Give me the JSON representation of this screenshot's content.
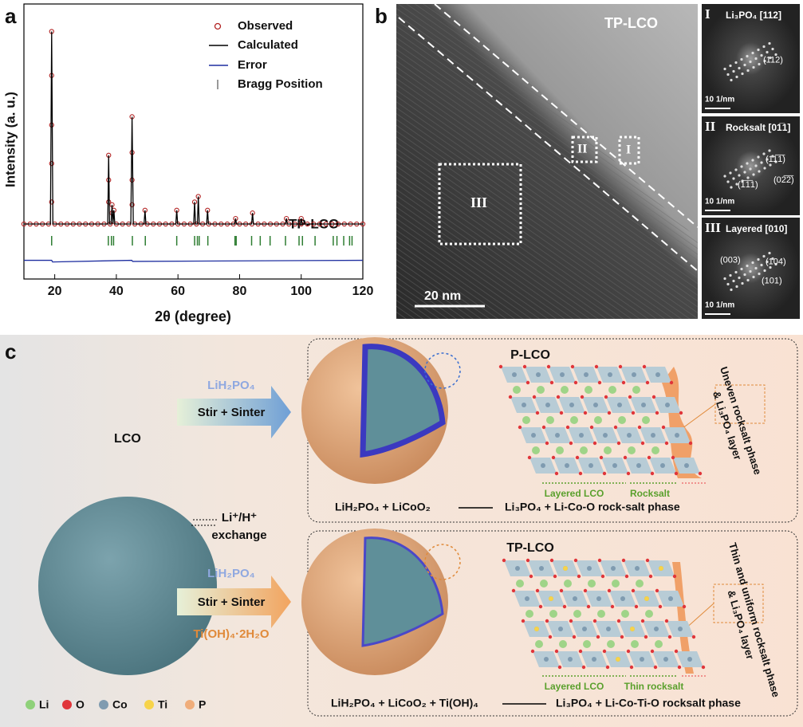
{
  "chart_data": {
    "type": "line",
    "panel_label": "a",
    "x_label": "2θ (degree)",
    "y_label": "Intensity (a. u.)",
    "annotation": "TP-LCO",
    "xlim": [
      10,
      120
    ],
    "ylim": [
      0,
      100
    ],
    "xticks": [
      20,
      40,
      60,
      80,
      100,
      120
    ],
    "series": [
      {
        "name": "Observed",
        "color": "#b22222",
        "marker": "circle",
        "x": [
          10,
          12,
          14,
          16,
          18,
          20,
          22,
          24,
          26,
          28,
          30,
          32,
          34,
          36,
          38,
          40,
          42,
          44,
          46,
          48,
          50,
          52,
          54,
          56,
          58,
          60,
          62,
          64,
          66,
          68,
          70,
          72,
          74,
          76,
          78,
          80,
          82,
          84,
          86,
          88,
          90,
          92,
          94,
          96,
          98,
          100,
          102,
          104,
          106,
          108,
          110,
          112,
          114,
          116,
          118,
          120,
          19,
          19,
          19,
          19,
          19,
          37.5,
          37.5,
          37.5,
          38.6,
          38.6,
          39.2,
          45.1,
          45.1,
          45.1,
          45.1,
          49.3,
          59.6,
          65.4,
          66.6,
          69.6,
          78.7,
          84.2,
          95.2,
          100
        ],
        "values": [
          20,
          20,
          20,
          20,
          20,
          20,
          20,
          20,
          20,
          20,
          20,
          20,
          20,
          20,
          20,
          20,
          20,
          20,
          20,
          20,
          20,
          20,
          20,
          20,
          20,
          20,
          20,
          20,
          20,
          20,
          20,
          20,
          20,
          20,
          20,
          20,
          20,
          20,
          20,
          20,
          20,
          20,
          20,
          20,
          20,
          20,
          20,
          20,
          20,
          20,
          20,
          20,
          20,
          20,
          20,
          20,
          28,
          42,
          56,
          74,
          90,
          28,
          36,
          45,
          24,
          27,
          25,
          27,
          36,
          46,
          59,
          25,
          25,
          28,
          30,
          25,
          22,
          24,
          22,
          22
        ]
      },
      {
        "name": "Calculated",
        "color": "#000000",
        "x": [
          10,
          18.6,
          19,
          19.4,
          37.2,
          37.5,
          37.8,
          38.3,
          38.6,
          38.9,
          39.2,
          39.5,
          44.7,
          45.1,
          45.5,
          49,
          49.3,
          49.6,
          59.3,
          59.6,
          59.9,
          65.1,
          65.4,
          65.7,
          66.3,
          66.6,
          66.9,
          69.3,
          69.6,
          69.9,
          78.4,
          78.7,
          79,
          83.9,
          84.2,
          84.5,
          94.9,
          95.2,
          95.5,
          99.7,
          100,
          100.3,
          120
        ],
        "values": [
          20,
          20,
          90,
          20,
          20,
          45,
          20,
          20,
          27,
          20,
          25,
          20,
          20,
          59,
          20,
          20,
          25,
          20,
          20,
          25,
          20,
          20,
          28,
          20,
          20,
          30,
          20,
          20,
          25,
          20,
          20,
          22,
          20,
          20,
          24,
          20,
          20,
          22,
          20,
          20,
          22,
          20,
          20
        ]
      },
      {
        "name": "Error",
        "color": "#1f2fa0",
        "x": [
          10,
          19,
          19.3,
          45,
          45.3,
          120
        ],
        "values": [
          6.8,
          6.8,
          6.2,
          6.8,
          6.4,
          6.8
        ]
      },
      {
        "name": "Bragg Position",
        "color": "#2e7d32",
        "bragg_positions": [
          19,
          37.4,
          38.4,
          39.1,
          45.2,
          49.4,
          59.6,
          65.4,
          66.3,
          66.9,
          69.7,
          78.5,
          78.9,
          83.9,
          86.7,
          89.9,
          94.9,
          99.3,
          100.4,
          104.5,
          110.4,
          111.6,
          113.8,
          115.7,
          116.5
        ]
      }
    ]
  },
  "panel_b": {
    "panel_label": "b",
    "sample": "TP-LCO",
    "regions": [
      "III",
      "II",
      "I"
    ],
    "scale_bar": "20 nm",
    "insets": [
      {
        "roman": "I",
        "title": "Li₃PO₄ [112]",
        "spots": [
          "(112)"
        ],
        "scale": "10 1/nm"
      },
      {
        "roman": "II",
        "title": "Rocksalt [01̅1]",
        "spots": [
          "(11̅1̅)",
          "(1̅1̅1)",
          "(02̅2̅)"
        ],
        "scale": "10 1/nm"
      },
      {
        "roman": "III",
        "title": "Layered [010]",
        "spots": [
          "(003)",
          "(104)",
          "(101)"
        ],
        "scale": "10 1/nm"
      }
    ]
  },
  "panel_c": {
    "panel_label": "c",
    "pristine": "LCO",
    "exchange": [
      "Li⁺/H⁺",
      "exchange"
    ],
    "route1": {
      "reagent": "LiH₂PO₄",
      "process": "Stir + Sinter",
      "product": "P-LCO",
      "layer_note": [
        "Uneven rocksalt phase",
        "& Li₃PO₄ layer"
      ],
      "regions": [
        "Layered LCO",
        "Rocksalt"
      ],
      "reactants": "LiH₂PO₄ + LiCoO₂",
      "products": "Li₃PO₄ + Li-Co-O rock-salt phase"
    },
    "route2": {
      "reagent": "LiH₂PO₄",
      "process": "Stir + Sinter",
      "additive": "Ti(OH)₄·2H₂O",
      "product": "TP-LCO",
      "layer_note": [
        "Thin and uniform rocksalt phase",
        "& Li₃PO₄ layer"
      ],
      "regions": [
        "Layered LCO",
        "Thin rocksalt"
      ],
      "reactants": "LiH₂PO₄ + LiCoO₂ + Ti(OH)₄",
      "products": "Li₃PO₄ + Li-Co-Ti-O rocksalt phase"
    },
    "legend": [
      {
        "label": "Li",
        "color": "#8fd17a"
      },
      {
        "label": "O",
        "color": "#e0353a"
      },
      {
        "label": "Co",
        "color": "#7f9bb0"
      },
      {
        "label": "Ti",
        "color": "#f7d34a"
      },
      {
        "label": "P",
        "color": "#f0ad7a"
      }
    ]
  }
}
